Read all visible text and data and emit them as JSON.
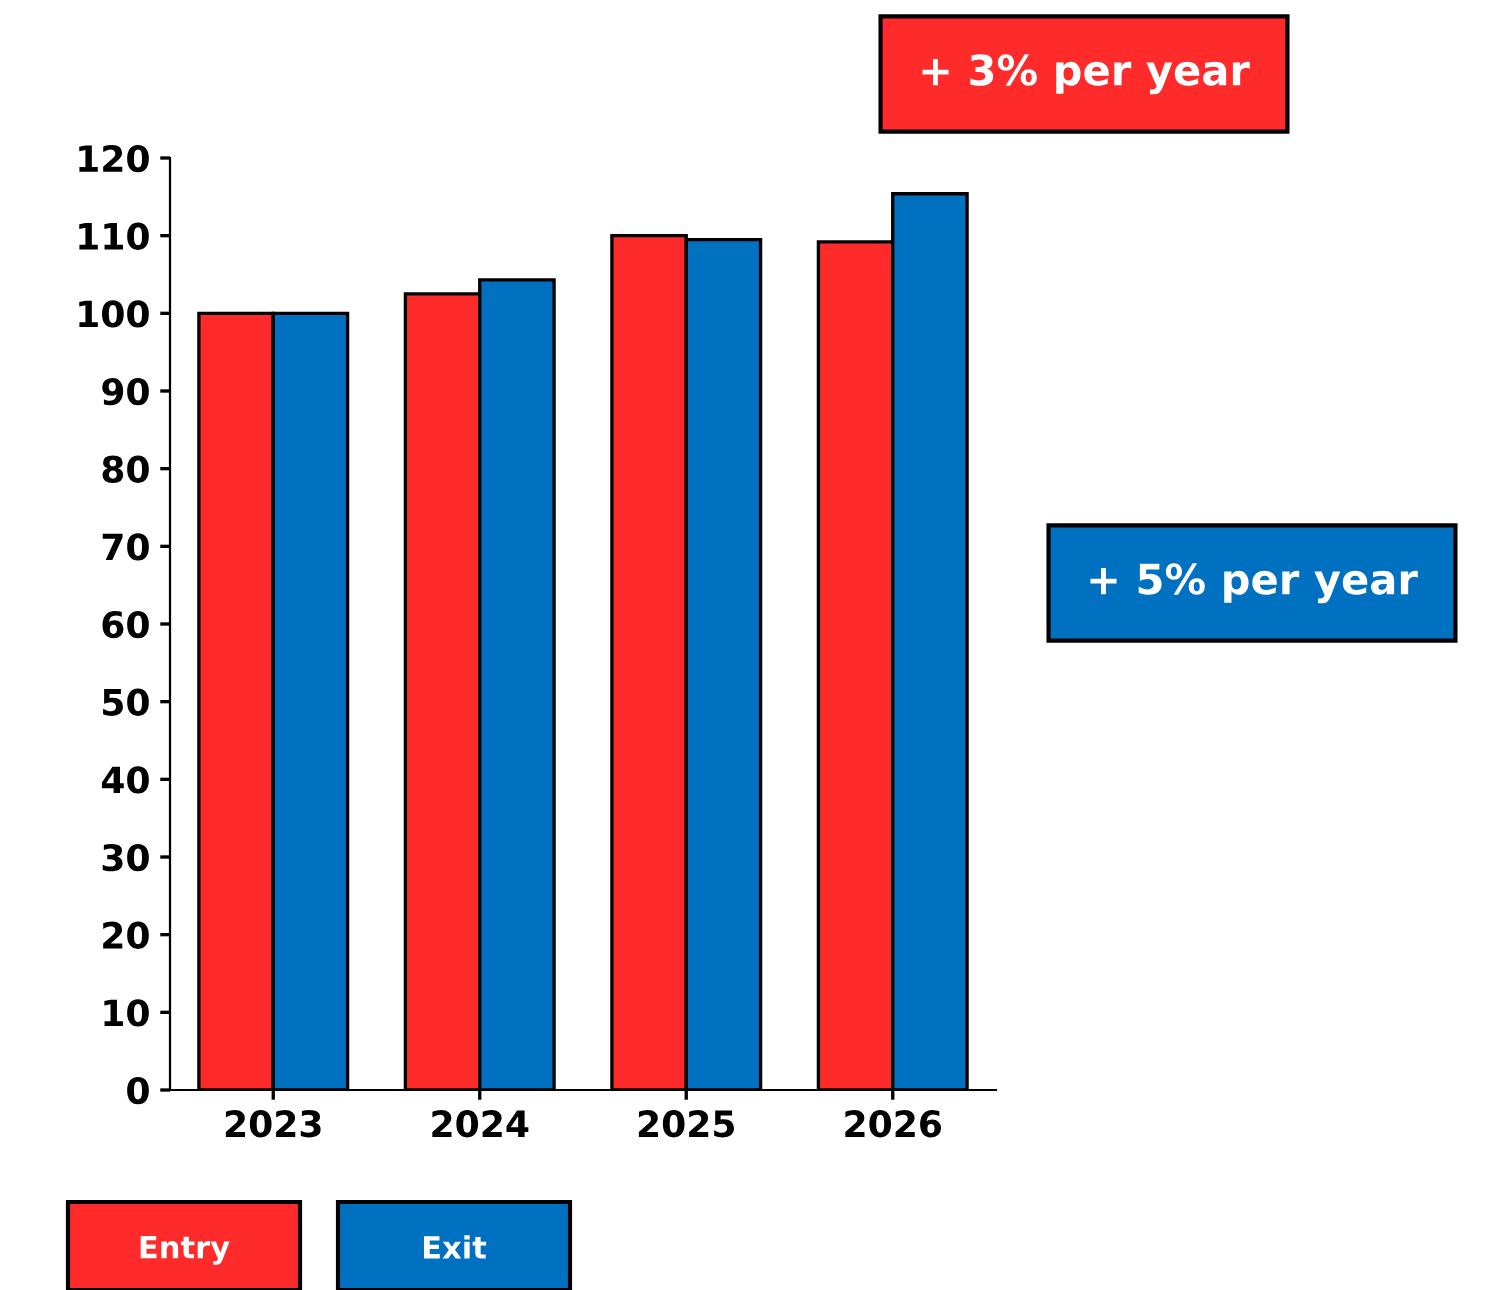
{
  "chart_data": {
    "type": "bar",
    "categories": [
      "2023",
      "2024",
      "2025",
      "2026"
    ],
    "series": [
      {
        "name": "Entry",
        "color": "#ff2a2a",
        "values": [
          100,
          102.5,
          110,
          109.2
        ]
      },
      {
        "name": "Exit",
        "color": "#0070c0",
        "values": [
          100,
          104.3,
          109.5,
          115.4
        ]
      }
    ],
    "ylim": [
      0,
      120
    ],
    "yticks": [
      0,
      10,
      20,
      30,
      40,
      50,
      60,
      70,
      80,
      90,
      100,
      110,
      120
    ],
    "grid": false,
    "legend": "bottom left",
    "annotations": [
      "+ 3% per year",
      "+ 5% per year"
    ]
  }
}
